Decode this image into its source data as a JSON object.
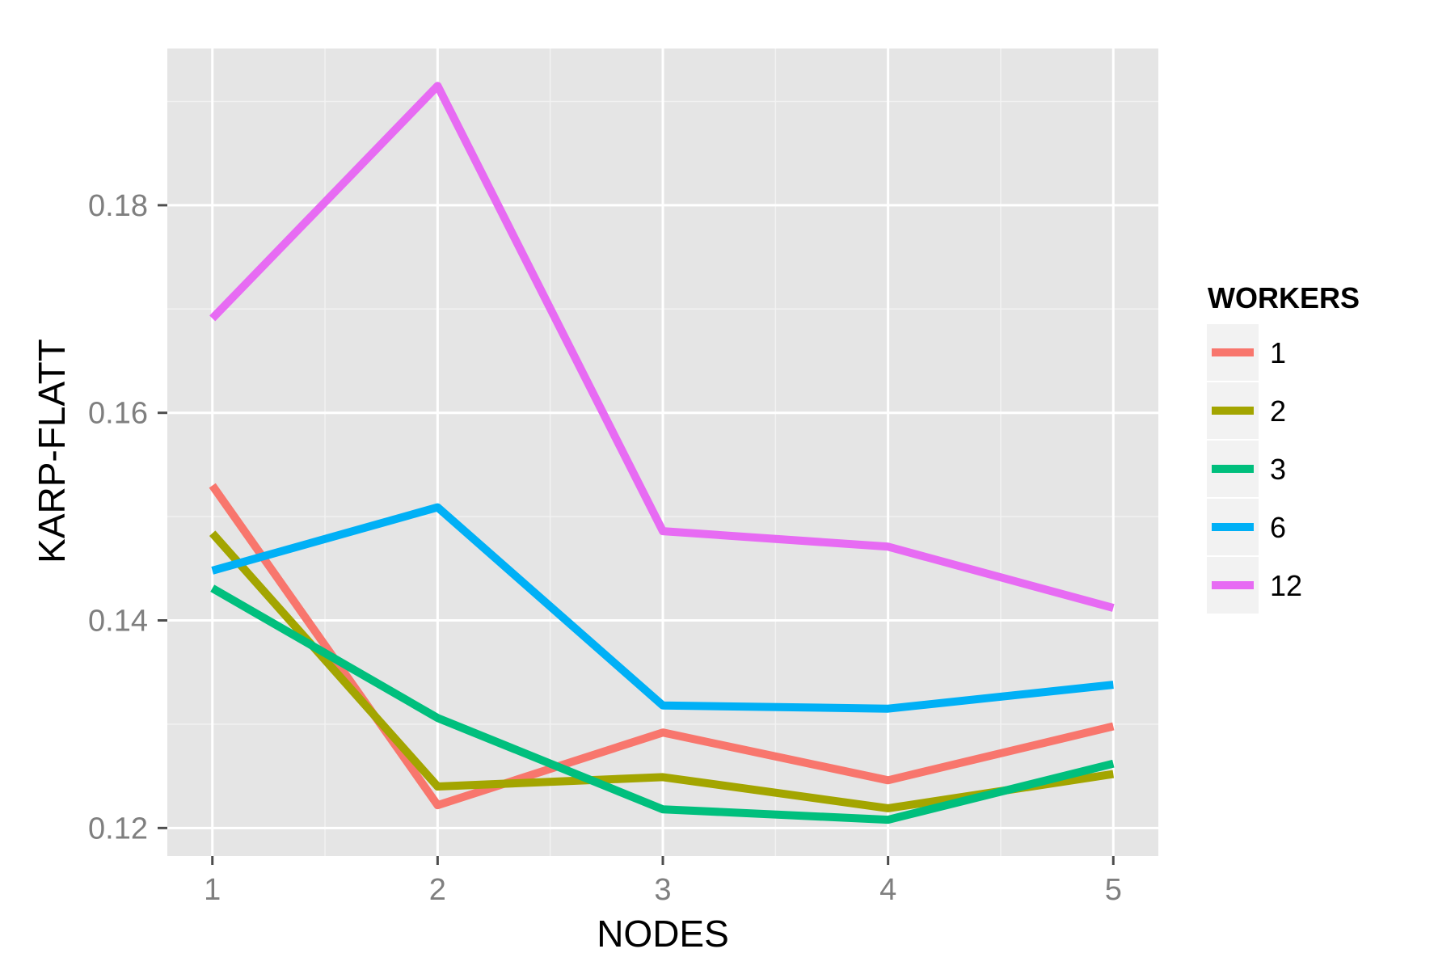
{
  "chart_data": {
    "type": "line",
    "xlabel": "NODES",
    "ylabel": "KARP-FLATT",
    "x": [
      1,
      2,
      3,
      4,
      5
    ],
    "x_ticks": [
      "1",
      "2",
      "3",
      "4",
      "5"
    ],
    "y_ticks": [
      "0.12",
      "0.14",
      "0.16",
      "0.18"
    ],
    "xlim": [
      0.8,
      5.2
    ],
    "ylim": [
      0.1173,
      0.1951
    ],
    "grid": true,
    "legend_title": "WORKERS",
    "legend_position": "right",
    "series": [
      {
        "name": "1",
        "color": "#F8766D",
        "values": [
          0.153,
          0.1222,
          0.1292,
          0.1246,
          0.1298
        ]
      },
      {
        "name": "2",
        "color": "#A3A500",
        "values": [
          0.1484,
          0.124,
          0.1249,
          0.1219,
          0.1252
        ]
      },
      {
        "name": "3",
        "color": "#00BF7D",
        "values": [
          0.1431,
          0.1306,
          0.1218,
          0.1208,
          0.1262
        ]
      },
      {
        "name": "6",
        "color": "#00B0F6",
        "values": [
          0.1448,
          0.1509,
          0.1318,
          0.1315,
          0.1338
        ]
      },
      {
        "name": "12",
        "color": "#E76BF3",
        "values": [
          0.1691,
          0.1915,
          0.1486,
          0.1471,
          0.1412
        ]
      }
    ]
  }
}
